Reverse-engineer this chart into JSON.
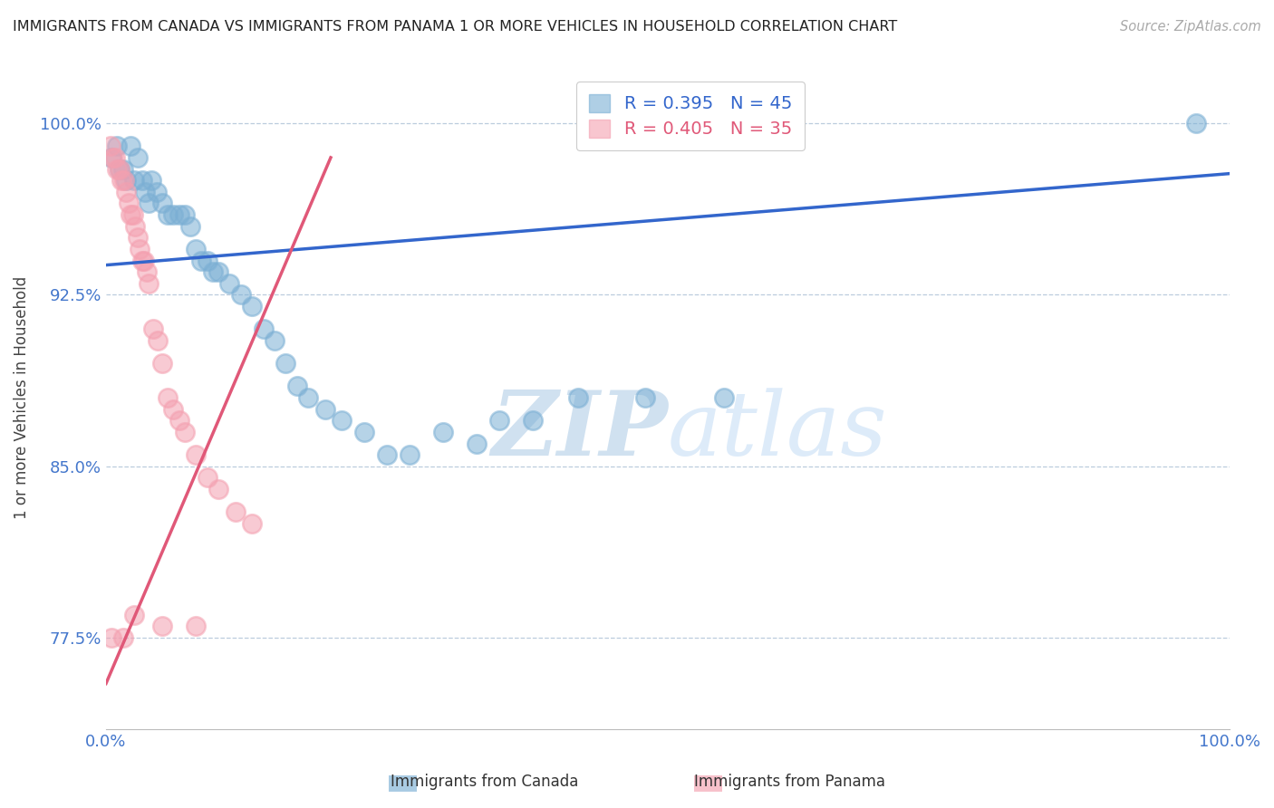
{
  "title": "IMMIGRANTS FROM CANADA VS IMMIGRANTS FROM PANAMA 1 OR MORE VEHICLES IN HOUSEHOLD CORRELATION CHART",
  "source": "Source: ZipAtlas.com",
  "ylabel": "1 or more Vehicles in Household",
  "xlabel": "",
  "watermark_zip": "ZIP",
  "watermark_atlas": "atlas",
  "canada_R": 0.395,
  "canada_N": 45,
  "panama_R": 0.405,
  "panama_N": 35,
  "canada_color": "#7BAFD4",
  "panama_color": "#F4A0B0",
  "trendline_canada_color": "#3366CC",
  "trendline_panama_color": "#E05878",
  "xlim": [
    0.0,
    1.0
  ],
  "ylim": [
    0.735,
    1.025
  ],
  "yticks": [
    0.775,
    0.85,
    0.925,
    1.0
  ],
  "ytick_labels": [
    "77.5%",
    "85.0%",
    "92.5%",
    "100.0%"
  ],
  "xtick_labels": [
    "0.0%",
    "100.0%"
  ],
  "background_color": "#ffffff",
  "canada_x": [
    0.005,
    0.01,
    0.015,
    0.018,
    0.022,
    0.025,
    0.028,
    0.032,
    0.035,
    0.038,
    0.04,
    0.045,
    0.05,
    0.055,
    0.06,
    0.065,
    0.07,
    0.075,
    0.08,
    0.085,
    0.09,
    0.095,
    0.1,
    0.11,
    0.12,
    0.13,
    0.14,
    0.15,
    0.16,
    0.17,
    0.18,
    0.195,
    0.21,
    0.23,
    0.25,
    0.27,
    0.3,
    0.33,
    0.35,
    0.38,
    0.42,
    0.48,
    0.55,
    0.97,
    0.012
  ],
  "canada_y": [
    0.985,
    0.99,
    0.98,
    0.975,
    0.99,
    0.975,
    0.985,
    0.975,
    0.97,
    0.965,
    0.975,
    0.97,
    0.965,
    0.96,
    0.96,
    0.96,
    0.96,
    0.955,
    0.945,
    0.94,
    0.94,
    0.935,
    0.935,
    0.93,
    0.925,
    0.92,
    0.91,
    0.905,
    0.895,
    0.885,
    0.88,
    0.875,
    0.87,
    0.865,
    0.855,
    0.855,
    0.865,
    0.86,
    0.87,
    0.87,
    0.88,
    0.88,
    0.88,
    1.0,
    0.98
  ],
  "panama_x": [
    0.004,
    0.006,
    0.008,
    0.01,
    0.012,
    0.014,
    0.016,
    0.018,
    0.02,
    0.022,
    0.024,
    0.026,
    0.028,
    0.03,
    0.032,
    0.034,
    0.036,
    0.038,
    0.042,
    0.046,
    0.05,
    0.055,
    0.06,
    0.065,
    0.07,
    0.08,
    0.09,
    0.1,
    0.115,
    0.13,
    0.005,
    0.015,
    0.025,
    0.05,
    0.08
  ],
  "panama_y": [
    0.99,
    0.985,
    0.985,
    0.98,
    0.98,
    0.975,
    0.975,
    0.97,
    0.965,
    0.96,
    0.96,
    0.955,
    0.95,
    0.945,
    0.94,
    0.94,
    0.935,
    0.93,
    0.91,
    0.905,
    0.895,
    0.88,
    0.875,
    0.87,
    0.865,
    0.855,
    0.845,
    0.84,
    0.83,
    0.825,
    0.775,
    0.775,
    0.785,
    0.78,
    0.78
  ],
  "canada_trendline_x": [
    0.0,
    1.0
  ],
  "canada_trendline_y": [
    0.938,
    0.978
  ],
  "panama_trendline_x": [
    0.0,
    0.2
  ],
  "panama_trendline_y": [
    0.755,
    0.985
  ]
}
